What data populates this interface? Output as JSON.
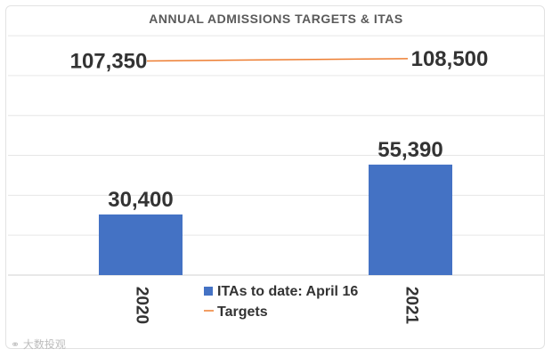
{
  "chart_data": {
    "type": "bar",
    "title": "ANNUAL ADMISSIONS TARGETS & ITAS",
    "categories": [
      "2020",
      "2021"
    ],
    "series": [
      {
        "name": "ITAs to date: April 16",
        "type": "bar",
        "values": [
          30400,
          55390
        ],
        "labels": [
          "30,400",
          "55,390"
        ],
        "color": "#4472c4"
      },
      {
        "name": "Targets",
        "type": "line",
        "values": [
          107350,
          108500
        ],
        "labels": [
          "107,350",
          "108,500"
        ],
        "color": "#ed7d31"
      }
    ],
    "ylim": [
      0,
      120000
    ],
    "grid": true,
    "legend_position": "bottom-center"
  },
  "watermark": "⚭ 大数投观"
}
